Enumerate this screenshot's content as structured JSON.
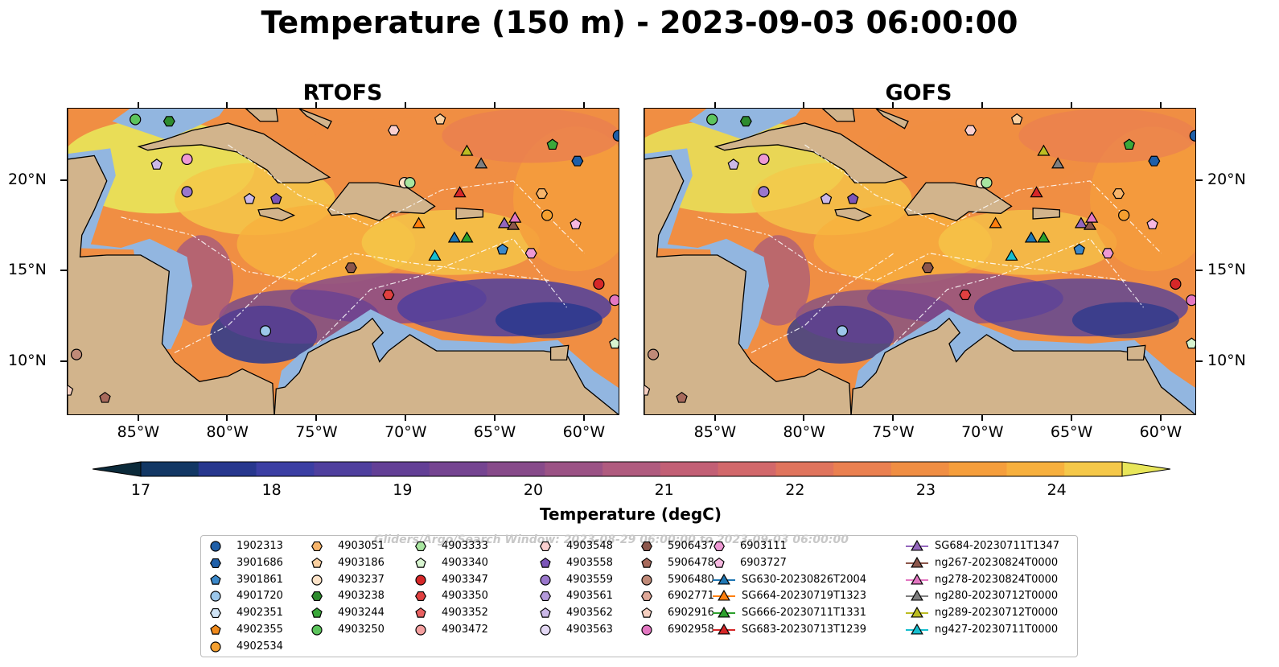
{
  "title": "Temperature (150 m) - 2023-09-03 06:00:00",
  "panels": [
    {
      "title": "RTOFS"
    },
    {
      "title": "GOFS"
    }
  ],
  "axes": {
    "lon_ticks": [
      "85°W",
      "80°W",
      "75°W",
      "70°W",
      "65°W",
      "60°W"
    ],
    "lat_ticks": [
      "20°N",
      "15°N",
      "10°N"
    ],
    "lon_range": [
      -89,
      -58
    ],
    "lat_range": [
      7,
      24
    ]
  },
  "colorbar": {
    "label": "Temperature (degC)",
    "ticks": [
      "17",
      "18",
      "19",
      "20",
      "21",
      "22",
      "23",
      "24"
    ],
    "range": [
      17,
      24.5
    ],
    "colors": [
      "#0b2a3a",
      "#123764",
      "#27378e",
      "#3b3ea3",
      "#4f3f9e",
      "#633f96",
      "#754491",
      "#874a8a",
      "#9b5285",
      "#b05b7f",
      "#c25f75",
      "#d2686b",
      "#e0745d",
      "#ea8050",
      "#f08e43",
      "#f59e3c",
      "#f7b03e",
      "#f5c849",
      "#e8e65a"
    ],
    "extend": "both"
  },
  "legend": {
    "columns": [
      [
        {
          "label": "1902313",
          "marker": "circle",
          "color": "#1f5fa8"
        },
        {
          "label": "3901686",
          "marker": "hexagon",
          "color": "#1f5fa8"
        },
        {
          "label": "3901861",
          "marker": "pentagon",
          "color": "#3b88c9"
        },
        {
          "label": "4901720",
          "marker": "circle",
          "color": "#9cc7ea"
        },
        {
          "label": "4902351",
          "marker": "hexagon",
          "color": "#cfe3f5"
        },
        {
          "label": "4902355",
          "marker": "pentagon",
          "color": "#f08a1c"
        },
        {
          "label": "4902534",
          "marker": "circle",
          "color": "#f5a030"
        }
      ],
      [
        {
          "label": "4903051",
          "marker": "hexagon",
          "color": "#f7b46a"
        },
        {
          "label": "4903186",
          "marker": "pentagon",
          "color": "#fbd0a0"
        },
        {
          "label": "4903237",
          "marker": "circle",
          "color": "#fde3c8"
        },
        {
          "label": "4903238",
          "marker": "hexagon",
          "color": "#2e8b2e"
        },
        {
          "label": "4903244",
          "marker": "pentagon",
          "color": "#3aa83a"
        },
        {
          "label": "4903250",
          "marker": "circle",
          "color": "#5cc45c"
        }
      ],
      [
        {
          "label": "4903333",
          "marker": "hexagon",
          "color": "#a8e6a0"
        },
        {
          "label": "4903340",
          "marker": "pentagon",
          "color": "#d8f5d0"
        },
        {
          "label": "4903347",
          "marker": "circle",
          "color": "#d62728"
        },
        {
          "label": "4903350",
          "marker": "hexagon",
          "color": "#e04040"
        },
        {
          "label": "4903352",
          "marker": "pentagon",
          "color": "#e86060"
        },
        {
          "label": "4903472",
          "marker": "circle",
          "color": "#f4a0a0"
        }
      ],
      [
        {
          "label": "4903548",
          "marker": "hexagon",
          "color": "#fad0d0"
        },
        {
          "label": "4903558",
          "marker": "pentagon",
          "color": "#7b55b8"
        },
        {
          "label": "4903559",
          "marker": "circle",
          "color": "#9a77cc"
        },
        {
          "label": "4903561",
          "marker": "hexagon",
          "color": "#b49adb"
        },
        {
          "label": "4903562",
          "marker": "pentagon",
          "color": "#cbb8e8"
        },
        {
          "label": "4903563",
          "marker": "circle",
          "color": "#e3d8f4"
        }
      ],
      [
        {
          "label": "5906437",
          "marker": "hexagon",
          "color": "#8c564b"
        },
        {
          "label": "5906478",
          "marker": "pentagon",
          "color": "#a86a5c"
        },
        {
          "label": "5906480",
          "marker": "circle",
          "color": "#c08a78"
        },
        {
          "label": "6902771",
          "marker": "hexagon",
          "color": "#e0a898"
        },
        {
          "label": "6902916",
          "marker": "pentagon",
          "color": "#f6cfc0"
        },
        {
          "label": "6902958",
          "marker": "circle",
          "color": "#e377c2"
        }
      ],
      [
        {
          "label": "6903111",
          "marker": "hexagon",
          "color": "#ee99d4"
        },
        {
          "label": "6903727",
          "marker": "pentagon",
          "color": "#f6b8e0"
        },
        {
          "label": "SG630-20230826T2004",
          "marker": "triangle-line",
          "color": "#1f77b4"
        },
        {
          "label": "SG664-20230719T1323",
          "marker": "triangle-line",
          "color": "#ff7f0e"
        },
        {
          "label": "SG666-20230711T1331",
          "marker": "triangle-line",
          "color": "#2ca02c"
        },
        {
          "label": "SG683-20230713T1239",
          "marker": "triangle-line",
          "color": "#d62728"
        }
      ],
      [
        {
          "label": "SG684-20230711T1347",
          "marker": "triangle-line",
          "color": "#9467bd"
        },
        {
          "label": "ng267-20230824T0000",
          "marker": "triangle-line",
          "color": "#8c564b"
        },
        {
          "label": "ng278-20230824T0000",
          "marker": "triangle-line",
          "color": "#e377c2"
        },
        {
          "label": "ng280-20230712T0000",
          "marker": "triangle-line",
          "color": "#7f7f7f"
        },
        {
          "label": "ng289-20230712T0000",
          "marker": "triangle-line",
          "color": "#bcbd22"
        },
        {
          "label": "ng427-20230711T0000",
          "marker": "triangle-line",
          "color": "#17becf"
        }
      ]
    ],
    "watermark": "Gliders/Argo/Search Window: 2023-08-29 06:00:00 to 2023-09-03 06:00:00"
  },
  "colors": {
    "land": "#d2b48c",
    "shelf": "#92b6e0",
    "deep_cold": "#07202e"
  },
  "markers": [
    {
      "lon": -85.2,
      "lat": 23.4,
      "marker": "circle",
      "color": "#5cc45c"
    },
    {
      "lon": -83.3,
      "lat": 23.3,
      "marker": "hexagon",
      "color": "#2e8b2e"
    },
    {
      "lon": -84.0,
      "lat": 20.9,
      "marker": "pentagon",
      "color": "#cbb8e8"
    },
    {
      "lon": -82.3,
      "lat": 21.2,
      "marker": "circle",
      "color": "#ee99d4"
    },
    {
      "lon": -82.3,
      "lat": 19.4,
      "marker": "circle",
      "color": "#9a77cc"
    },
    {
      "lon": -78.8,
      "lat": 19.0,
      "marker": "pentagon",
      "color": "#cbb8e8"
    },
    {
      "lon": -77.3,
      "lat": 19.0,
      "marker": "pentagon",
      "color": "#7b55b8"
    },
    {
      "lon": -70.7,
      "lat": 22.8,
      "marker": "hexagon",
      "color": "#fad0d0"
    },
    {
      "lon": -68.1,
      "lat": 23.4,
      "marker": "pentagon",
      "color": "#fbd0a0"
    },
    {
      "lon": -70.1,
      "lat": 19.9,
      "marker": "circle",
      "color": "#fde3c8"
    },
    {
      "lon": -69.8,
      "lat": 19.9,
      "marker": "circle",
      "color": "#a8e6a0"
    },
    {
      "lon": -66.6,
      "lat": 21.6,
      "marker": "triangle",
      "color": "#bcbd22"
    },
    {
      "lon": -65.8,
      "lat": 20.9,
      "marker": "triangle",
      "color": "#7f7f7f"
    },
    {
      "lon": -61.8,
      "lat": 22.0,
      "marker": "pentagon",
      "color": "#3aa83a"
    },
    {
      "lon": -60.4,
      "lat": 21.1,
      "marker": "hexagon",
      "color": "#1f5fa8"
    },
    {
      "lon": -58.1,
      "lat": 22.5,
      "marker": "circle",
      "color": "#1f5fa8"
    },
    {
      "lon": -67.0,
      "lat": 19.3,
      "marker": "triangle",
      "color": "#d62728"
    },
    {
      "lon": -62.4,
      "lat": 19.3,
      "marker": "hexagon",
      "color": "#f7b46a"
    },
    {
      "lon": -69.3,
      "lat": 17.6,
      "marker": "triangle",
      "color": "#ff7f0e"
    },
    {
      "lon": -67.3,
      "lat": 16.8,
      "marker": "triangle",
      "color": "#1f77b4"
    },
    {
      "lon": -66.6,
      "lat": 16.8,
      "marker": "triangle",
      "color": "#2ca02c"
    },
    {
      "lon": -64.5,
      "lat": 17.6,
      "marker": "triangle",
      "color": "#9467bd"
    },
    {
      "lon": -64.0,
      "lat": 17.5,
      "marker": "triangle",
      "color": "#8c564b"
    },
    {
      "lon": -63.9,
      "lat": 17.9,
      "marker": "triangle",
      "color": "#e377c2"
    },
    {
      "lon": -62.1,
      "lat": 18.1,
      "marker": "circle",
      "color": "#f5a030"
    },
    {
      "lon": -60.5,
      "lat": 17.6,
      "marker": "pentagon",
      "color": "#f6b8e0"
    },
    {
      "lon": -68.4,
      "lat": 15.8,
      "marker": "triangle",
      "color": "#17becf"
    },
    {
      "lon": -64.6,
      "lat": 16.2,
      "marker": "pentagon",
      "color": "#3b88c9"
    },
    {
      "lon": -63.0,
      "lat": 16.0,
      "marker": "hexagon",
      "color": "#ee99d4"
    },
    {
      "lon": -73.1,
      "lat": 15.2,
      "marker": "hexagon",
      "color": "#8c564b"
    },
    {
      "lon": -71.0,
      "lat": 13.7,
      "marker": "hexagon",
      "color": "#e04040"
    },
    {
      "lon": -59.2,
      "lat": 14.3,
      "marker": "circle",
      "color": "#d62728"
    },
    {
      "lon": -58.3,
      "lat": 13.4,
      "marker": "circle",
      "color": "#e377c2"
    },
    {
      "lon": -77.9,
      "lat": 11.7,
      "marker": "circle",
      "color": "#9cc7ea"
    },
    {
      "lon": -58.3,
      "lat": 11.0,
      "marker": "pentagon",
      "color": "#d8f5d0"
    },
    {
      "lon": -88.5,
      "lat": 10.4,
      "marker": "circle",
      "color": "#c08a78"
    },
    {
      "lon": -89.0,
      "lat": 8.4,
      "marker": "pentagon",
      "color": "#f6cfc0"
    },
    {
      "lon": -86.9,
      "lat": 8.0,
      "marker": "pentagon",
      "color": "#a86a5c"
    }
  ]
}
